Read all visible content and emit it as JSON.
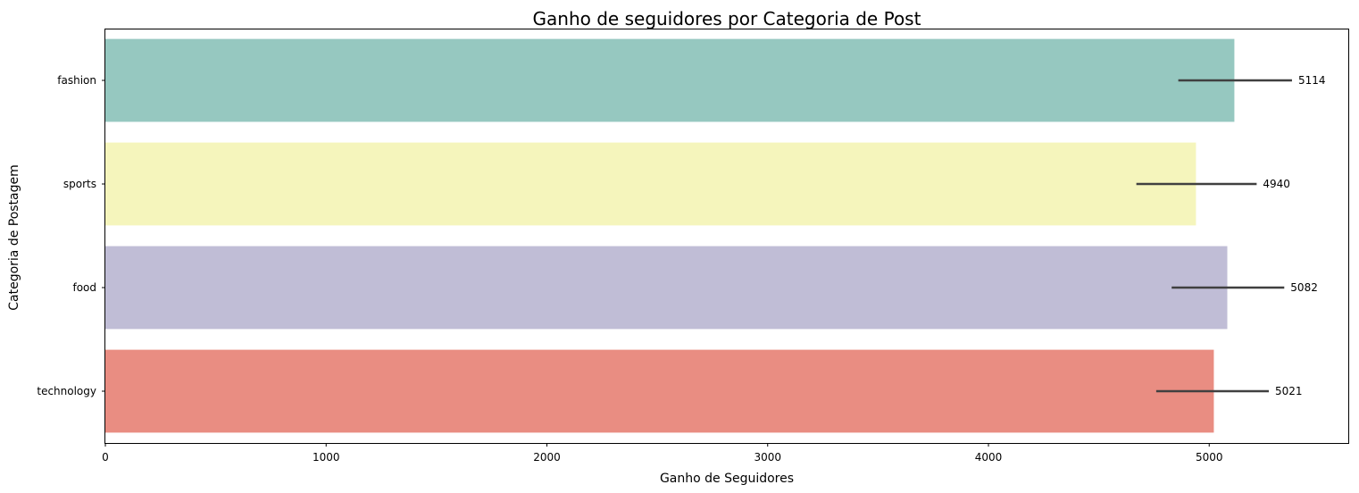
{
  "chart_data": {
    "type": "bar",
    "orientation": "horizontal",
    "title": "Ganho de seguidores por Categoria de Post",
    "xlabel": "Ganho de Seguidores",
    "ylabel": "Categoria de Postagem",
    "categories": [
      "fashion",
      "sports",
      "food",
      "technology"
    ],
    "values": [
      5114,
      4940,
      5082,
      5021
    ],
    "data_labels": [
      "5114",
      "4940",
      "5082",
      "5021"
    ],
    "error_bars": [
      [
        4860,
        5375
      ],
      [
        4670,
        5215
      ],
      [
        4830,
        5340
      ],
      [
        4760,
        5270
      ]
    ],
    "colors": [
      "#96c8c0",
      "#f5f5bc",
      "#c0bdd6",
      "#e98d82"
    ],
    "xlim": [
      0,
      5630
    ],
    "xticks": [
      0,
      1000,
      2000,
      3000,
      4000,
      5000
    ],
    "grid": false,
    "legend": "none"
  }
}
